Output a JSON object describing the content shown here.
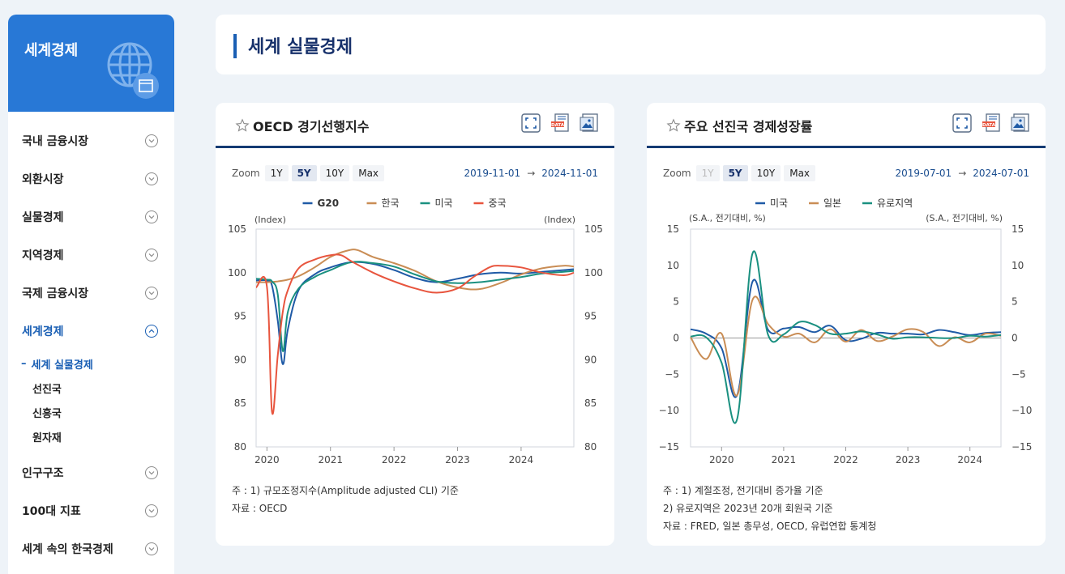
{
  "sidebar": {
    "title": "세계경제",
    "items": [
      {
        "label": "국내 금융시장"
      },
      {
        "label": "외환시장"
      },
      {
        "label": "실물경제"
      },
      {
        "label": "지역경제"
      },
      {
        "label": "국제 금융시장"
      },
      {
        "label": "세계경제"
      },
      {
        "label": "인구구조"
      },
      {
        "label": "100대 지표"
      },
      {
        "label": "세계 속의 한국경제"
      }
    ],
    "submenu": [
      {
        "label": "세계 실물경제"
      },
      {
        "label": "선진국"
      },
      {
        "label": "신흥국"
      },
      {
        "label": "원자재"
      }
    ]
  },
  "page": {
    "title": "세계 실물경제"
  },
  "cards": [
    {
      "title": "OECD 경기선행지수",
      "zoom_label": "Zoom",
      "zoom_buttons": [
        "1Y",
        "5Y",
        "10Y",
        "Max"
      ],
      "range_start": "2019-11-01",
      "range_arrow": "→",
      "range_end": "2024-11-01",
      "note1": "주 : 1) 규모조정지수(Amplitude adjusted CLI) 기준",
      "note2": "자료 :  OECD",
      "note3": ""
    },
    {
      "title": "주요 선진국 경제성장률",
      "zoom_label": "Zoom",
      "zoom_buttons": [
        "1Y",
        "5Y",
        "10Y",
        "Max"
      ],
      "range_start": "2019-07-01",
      "range_arrow": "→",
      "range_end": "2024-07-01",
      "note1": "주 : 1) 계절조정, 전기대비 증가율 기준",
      "note2": "      2) 유로지역은 2023년 20개 회원국 기준",
      "note3": "자료 :  FRED, 일본 총무성, OECD, 유럽연합 통계청"
    }
  ],
  "chart_data": [
    {
      "type": "line",
      "title": "OECD 경기선행지수",
      "ylabel_left": "(Index)",
      "ylabel_right": "(Index)",
      "ylim": [
        80,
        105
      ],
      "yticks": [
        80,
        85,
        90,
        95,
        100,
        105
      ],
      "xlim": [
        2019.83,
        2024.83
      ],
      "xticks": [
        2020,
        2021,
        2022,
        2023,
        2024
      ],
      "legend": "top",
      "series": [
        {
          "name": "G20",
          "color": "#1f5aa6",
          "x": [
            2019.83,
            2020.0,
            2020.08,
            2020.17,
            2020.25,
            2020.33,
            2020.5,
            2020.75,
            2021.0,
            2021.33,
            2021.67,
            2022.0,
            2022.33,
            2022.67,
            2023.0,
            2023.33,
            2023.67,
            2024.0,
            2024.33,
            2024.67,
            2024.83
          ],
          "y": [
            99.1,
            99.1,
            98.5,
            94.5,
            89.5,
            93.5,
            98.0,
            99.8,
            100.6,
            101.2,
            101.0,
            100.3,
            99.4,
            98.9,
            99.3,
            99.8,
            100.0,
            99.9,
            100.1,
            100.3,
            100.4
          ]
        },
        {
          "name": "한국",
          "color": "#c98d55",
          "x": [
            2019.83,
            2020.0,
            2020.17,
            2020.33,
            2020.5,
            2020.75,
            2021.0,
            2021.25,
            2021.42,
            2021.67,
            2022.0,
            2022.33,
            2022.67,
            2023.0,
            2023.33,
            2023.67,
            2024.0,
            2024.33,
            2024.67,
            2024.83
          ],
          "y": [
            98.9,
            98.9,
            99.0,
            99.2,
            99.6,
            100.6,
            101.8,
            102.5,
            102.6,
            101.8,
            101.1,
            100.2,
            99.0,
            98.3,
            98.1,
            98.8,
            99.8,
            100.5,
            100.8,
            100.7
          ]
        },
        {
          "name": "미국",
          "color": "#1a9080",
          "x": [
            2019.83,
            2020.0,
            2020.08,
            2020.17,
            2020.25,
            2020.33,
            2020.5,
            2020.75,
            2021.0,
            2021.33,
            2021.67,
            2022.0,
            2022.33,
            2022.67,
            2023.0,
            2023.33,
            2023.67,
            2024.0,
            2024.33,
            2024.67,
            2024.83
          ],
          "y": [
            99.3,
            99.2,
            99.0,
            97.5,
            91.0,
            95.5,
            98.2,
            99.5,
            100.3,
            101.2,
            101.1,
            100.7,
            99.8,
            99.0,
            98.8,
            98.9,
            99.2,
            99.5,
            99.9,
            100.1,
            100.2
          ]
        },
        {
          "name": "중국",
          "color": "#e8553e",
          "x": [
            2019.83,
            2020.0,
            2020.08,
            2020.17,
            2020.25,
            2020.33,
            2020.5,
            2020.75,
            2021.0,
            2021.17,
            2021.33,
            2021.67,
            2022.0,
            2022.33,
            2022.67,
            2023.0,
            2023.25,
            2023.5,
            2023.67,
            2024.0,
            2024.33,
            2024.67,
            2024.83
          ],
          "y": [
            98.3,
            98.4,
            84.0,
            90.5,
            95.5,
            98.0,
            100.5,
            101.5,
            102.0,
            102.0,
            101.3,
            100.0,
            99.0,
            98.2,
            97.7,
            98.2,
            99.5,
            100.6,
            100.8,
            100.6,
            100.0,
            99.7,
            100.0
          ]
        }
      ]
    },
    {
      "type": "line",
      "title": "주요 선진국 경제성장률",
      "ylabel_left": "(S.A., 전기대비, %)",
      "ylabel_right": "(S.A., 전기대비, %)",
      "ylim": [
        -15,
        15
      ],
      "yticks": [
        -15,
        -10,
        -5,
        0,
        5,
        10,
        15
      ],
      "xlim": [
        2019.5,
        2024.5
      ],
      "xticks": [
        2020,
        2021,
        2022,
        2023,
        2024
      ],
      "legend": "top",
      "series": [
        {
          "name": "미국",
          "color": "#1f5aa6",
          "x": [
            2019.5,
            2019.75,
            2020.0,
            2020.25,
            2020.5,
            2020.75,
            2021.0,
            2021.25,
            2021.5,
            2021.75,
            2022.0,
            2022.25,
            2022.5,
            2022.75,
            2023.0,
            2023.25,
            2023.5,
            2023.75,
            2024.0,
            2024.25,
            2024.5
          ],
          "y": [
            1.2,
            0.6,
            -1.4,
            -7.9,
            7.8,
            1.1,
            1.3,
            1.5,
            0.8,
            1.7,
            -0.3,
            -0.1,
            0.7,
            0.6,
            0.6,
            0.5,
            1.1,
            0.8,
            0.4,
            0.7,
            0.8
          ]
        },
        {
          "name": "일본",
          "color": "#c98d55",
          "x": [
            2019.5,
            2019.75,
            2020.0,
            2020.25,
            2020.5,
            2020.75,
            2021.0,
            2021.25,
            2021.5,
            2021.75,
            2022.0,
            2022.25,
            2022.5,
            2022.75,
            2023.0,
            2023.25,
            2023.5,
            2023.75,
            2024.0,
            2024.25,
            2024.5
          ],
          "y": [
            0.1,
            -2.9,
            0.6,
            -7.9,
            5.3,
            1.9,
            0.2,
            0.6,
            -0.6,
            1.2,
            -0.5,
            1.1,
            -0.4,
            0.2,
            1.2,
            0.8,
            -1.1,
            0.1,
            -0.6,
            0.6,
            0.3
          ]
        },
        {
          "name": "유로지역",
          "color": "#1a9080",
          "x": [
            2019.5,
            2019.75,
            2020.0,
            2020.25,
            2020.5,
            2020.75,
            2021.0,
            2021.25,
            2021.5,
            2021.75,
            2022.0,
            2022.25,
            2022.5,
            2022.75,
            2023.0,
            2023.25,
            2023.5,
            2023.75,
            2024.0,
            2024.25,
            2024.5
          ],
          "y": [
            0.2,
            0.1,
            -3.4,
            -11.2,
            11.7,
            0.4,
            0.5,
            2.2,
            1.8,
            0.6,
            0.6,
            0.9,
            0.5,
            -0.1,
            0.1,
            0.1,
            0.0,
            0.0,
            0.3,
            0.2,
            0.4
          ]
        }
      ]
    }
  ]
}
